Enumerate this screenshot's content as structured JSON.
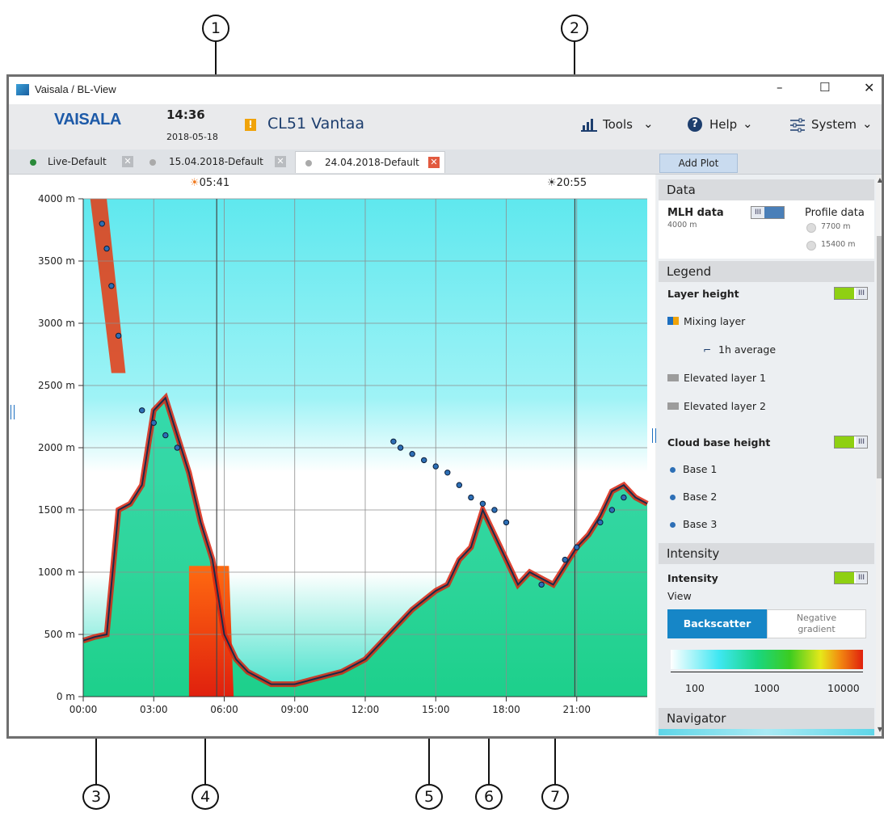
{
  "callouts": [
    "1",
    "2",
    "3",
    "4",
    "5",
    "6",
    "7"
  ],
  "window": {
    "title": "Vaisala / BL-View",
    "app_icon": "vaisala-app-icon",
    "controls": {
      "minimize": "–",
      "maximize": "☐",
      "close": "✕"
    }
  },
  "header": {
    "logo": "VAISALA",
    "time": "14:36",
    "date": "2018-05-18",
    "alert_icon": "!",
    "alert_color": "#f0a30a",
    "station": "CL51 Vantaa",
    "tools_label": "Tools",
    "help_label": "Help",
    "system_label": "System"
  },
  "tabs": [
    {
      "label": "Live-Default",
      "dot_color": "#2a8a3a",
      "close": "✕"
    },
    {
      "label": "15.04.2018-Default",
      "dot_color": "#aaaaaa",
      "close": "✕"
    },
    {
      "label": "24.04.2018-Default",
      "dot_color": "#aaaaaa",
      "close": "✕"
    }
  ],
  "add_plot_label": "Add Plot",
  "sunrise": "05:41",
  "sunset": "20:55",
  "chart_data": {
    "type": "heatmap",
    "title": "",
    "xlabel": "",
    "ylabel": "",
    "x_ticks": [
      "00:00",
      "03:00",
      "06:00",
      "09:00",
      "12:00",
      "15:00",
      "18:00",
      "21:00"
    ],
    "x_tick_hours": [
      0,
      3,
      6,
      9,
      12,
      15,
      18,
      21
    ],
    "xlim_hours": [
      0,
      24
    ],
    "y_ticks": [
      "0 m",
      "500 m",
      "1000 m",
      "1500 m",
      "2000 m",
      "2500 m",
      "3000 m",
      "3500 m",
      "4000 m"
    ],
    "y_tick_values": [
      0,
      500,
      1000,
      1500,
      2000,
      2500,
      3000,
      3500,
      4000
    ],
    "ylim": [
      0,
      4000
    ],
    "grid": true,
    "sun_markers_hours": {
      "sunrise": 5.68,
      "sunset": 20.92
    },
    "mixing_layer_height": {
      "hours": [
        0,
        0.5,
        1,
        1.5,
        2,
        2.5,
        3,
        3.5,
        4,
        4.5,
        5,
        5.5,
        6,
        6.5,
        7,
        8,
        9,
        10,
        11,
        12,
        13,
        14,
        15,
        15.5,
        16,
        16.5,
        17,
        17.5,
        18,
        18.5,
        19,
        19.5,
        20,
        20.5,
        21,
        21.5,
        22,
        22.5,
        23,
        23.5,
        24
      ],
      "values": [
        450,
        480,
        500,
        1500,
        1550,
        1700,
        2300,
        2400,
        2100,
        1800,
        1400,
        1100,
        500,
        300,
        200,
        100,
        100,
        150,
        200,
        300,
        500,
        700,
        850,
        900,
        1100,
        1200,
        1500,
        1300,
        1100,
        900,
        1000,
        950,
        900,
        1050,
        1200,
        1300,
        1450,
        1650,
        1700,
        1600,
        1550
      ]
    },
    "cloud_base": {
      "hours": [
        0.8,
        1.0,
        1.2,
        1.5,
        2.5,
        3.0,
        3.5,
        4.0,
        13.2,
        13.5,
        14.0,
        14.5,
        15.0,
        15.5,
        16.0,
        16.5,
        17.0,
        17.5,
        18.0,
        19.5,
        20.5,
        21.0,
        22.0,
        22.5,
        23.0
      ],
      "values": [
        3800,
        3600,
        3300,
        2900,
        2300,
        2200,
        2100,
        2000,
        2050,
        2000,
        1950,
        1900,
        1850,
        1800,
        1700,
        1600,
        1550,
        1500,
        1400,
        900,
        1100,
        1200,
        1400,
        1500,
        1600
      ]
    },
    "intensity_scale": {
      "labels": [
        "100",
        "1000",
        "10000"
      ],
      "colors": [
        "#ffffff",
        "#3fe7f2",
        "#19d680",
        "#3ccc20",
        "#e6e81a",
        "#f28a10",
        "#e0200e"
      ]
    }
  },
  "side": {
    "data_head": "Data",
    "mlh_label": "MLH data",
    "mlh_value": "4000 m",
    "profile_label": "Profile data",
    "profile_options": [
      "7700 m",
      "15400 m"
    ],
    "legend_head": "Legend",
    "layer_height": "Layer height",
    "mixing_layer": "Mixing layer",
    "avg_1h": "1h average",
    "elevated1": "Elevated layer 1",
    "elevated2": "Elevated layer 2",
    "cloud_base_height": "Cloud base height",
    "bases": [
      "Base 1",
      "Base 2",
      "Base 3"
    ],
    "intensity_head": "Intensity",
    "intensity_label": "Intensity",
    "view_label": "View",
    "backscatter": "Backscatter",
    "negative_gradient": "Negative\ngradient",
    "navigator_head": "Navigator",
    "accent": "#1686c7"
  }
}
